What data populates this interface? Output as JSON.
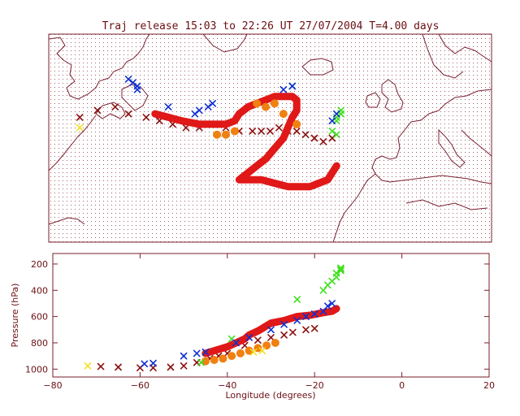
{
  "title": "Traj release 15:03 to 22:26 UT 27/07/2004    T=4.00 days",
  "colors": {
    "frame": "#7a1f2b",
    "text": "#6b0f14",
    "dark_red": "#8b1010",
    "red": "#e01818",
    "orange": "#f08010",
    "yellow": "#f0e020",
    "green": "#40e020",
    "blue": "#1030d0"
  },
  "map_panel": {
    "lon_range": [
      -80,
      20
    ],
    "lat_range": [
      10,
      70
    ],
    "background": "dotted grid",
    "coastlines": "North Atlantic, North America, Europe, North Africa"
  },
  "chart_data": [
    {
      "type": "scatter",
      "panel": "map",
      "xlabel": "",
      "ylabel": "",
      "xlim": [
        -80,
        20
      ],
      "ylim": [
        10,
        70
      ],
      "grid": true,
      "series": [
        {
          "color_key": "dark_red",
          "marker": "x",
          "x": [
            -73,
            -69,
            -65,
            -62,
            -58,
            -55,
            -52,
            -49,
            -46,
            -43,
            -40,
            -37,
            -34,
            -32,
            -30,
            -28,
            -26,
            -24,
            -22,
            -20,
            -18,
            -16
          ],
          "y": [
            46,
            48,
            49,
            47,
            46,
            45,
            44,
            43,
            43,
            44,
            43,
            42,
            42,
            42,
            42,
            43,
            42,
            42,
            41,
            40,
            39,
            40
          ]
        },
        {
          "color_key": "red",
          "marker": "line",
          "x": [
            -56,
            -53,
            -50,
            -46,
            -43,
            -40,
            -38,
            -37,
            -36,
            -35,
            -33,
            -31,
            -29,
            -27,
            -25,
            -24,
            -24,
            -24,
            -25,
            -26,
            -27,
            -29,
            -31,
            -33,
            -35,
            -37,
            -35,
            -32,
            -29,
            -26,
            -23,
            -21,
            -19,
            -17,
            -16,
            -15
          ],
          "y": [
            47,
            46,
            45,
            44,
            44,
            44,
            45,
            47,
            48,
            49,
            50,
            51,
            52,
            52,
            52,
            51,
            50,
            48,
            46,
            43,
            40,
            37,
            34,
            32,
            30,
            28,
            28,
            28,
            27,
            26,
            26,
            26,
            27,
            28,
            30,
            32
          ]
        },
        {
          "color_key": "orange",
          "marker": "o",
          "x": [
            -42,
            -40,
            -38,
            -33,
            -31,
            -29,
            -27,
            -24
          ],
          "y": [
            41,
            41,
            42,
            50,
            49,
            50,
            47,
            44
          ]
        },
        {
          "color_key": "yellow",
          "marker": "x",
          "x": [
            -73
          ],
          "y": [
            43
          ]
        },
        {
          "color_key": "green",
          "marker": "x",
          "x": [
            -25,
            -15,
            -15,
            -14,
            -14,
            -14,
            -16,
            -15
          ],
          "y": [
            55,
            45,
            46,
            47,
            48,
            47,
            42,
            41
          ]
        },
        {
          "color_key": "blue",
          "marker": "x",
          "x": [
            -62,
            -61,
            -60,
            -60,
            -53,
            -47,
            -46,
            -44,
            -43,
            -27,
            -25,
            -15,
            -16
          ],
          "y": [
            57,
            56,
            55,
            54,
            49,
            47,
            48,
            49,
            50,
            54,
            55,
            47,
            45
          ]
        }
      ]
    },
    {
      "type": "scatter",
      "panel": "profile",
      "title": "",
      "xlabel": "Longitude  (degrees)",
      "ylabel": "Pressure  (hPa)",
      "xlim": [
        -80,
        20
      ],
      "ylim": [
        1060,
        120
      ],
      "xticks": [
        -80,
        -60,
        -40,
        -20,
        0,
        20
      ],
      "yticks": [
        200,
        400,
        600,
        800,
        1000
      ],
      "xtick_labels": [
        "−80",
        "−60",
        "−40",
        "−20",
        "0",
        "20"
      ],
      "ytick_labels": [
        "200",
        "400",
        "600",
        "800",
        "1000"
      ],
      "grid": false,
      "series": [
        {
          "color_key": "dark_red",
          "marker": "x",
          "x": [
            -69,
            -65,
            -60,
            -57,
            -53,
            -50,
            -47,
            -44,
            -42,
            -40,
            -36,
            -33,
            -30,
            -27,
            -25,
            -22,
            -20
          ],
          "y": [
            980,
            985,
            990,
            990,
            985,
            975,
            950,
            920,
            900,
            880,
            820,
            780,
            760,
            740,
            720,
            700,
            690
          ]
        },
        {
          "color_key": "red",
          "marker": "line",
          "x": [
            -45,
            -42,
            -40,
            -38,
            -36,
            -35,
            -33,
            -32,
            -31,
            -30,
            -27,
            -24,
            -21,
            -18,
            -16,
            -15
          ],
          "y": [
            880,
            850,
            830,
            800,
            770,
            740,
            710,
            690,
            670,
            650,
            630,
            600,
            590,
            570,
            560,
            540
          ]
        },
        {
          "color_key": "orange",
          "marker": "o",
          "x": [
            -45,
            -43,
            -41,
            -39,
            -37,
            -35,
            -33,
            -31,
            -29
          ],
          "y": [
            940,
            930,
            920,
            900,
            880,
            860,
            840,
            820,
            800
          ]
        },
        {
          "color_key": "yellow",
          "marker": "x",
          "x": [
            -72,
            -34,
            -32
          ],
          "y": [
            975,
            870,
            860
          ]
        },
        {
          "color_key": "green",
          "marker": "x",
          "x": [
            -46,
            -39,
            -24,
            -18,
            -17,
            -16,
            -15,
            -15,
            -14,
            -14,
            -14
          ],
          "y": [
            950,
            770,
            470,
            400,
            360,
            330,
            300,
            270,
            250,
            240,
            230
          ]
        },
        {
          "color_key": "blue",
          "marker": "x",
          "x": [
            -59,
            -57,
            -50,
            -47,
            -45,
            -38,
            -35,
            -30,
            -27,
            -24,
            -22,
            -20,
            -18,
            -17,
            -16
          ],
          "y": [
            960,
            955,
            900,
            880,
            870,
            800,
            760,
            700,
            660,
            630,
            600,
            580,
            560,
            520,
            500
          ]
        }
      ]
    }
  ]
}
